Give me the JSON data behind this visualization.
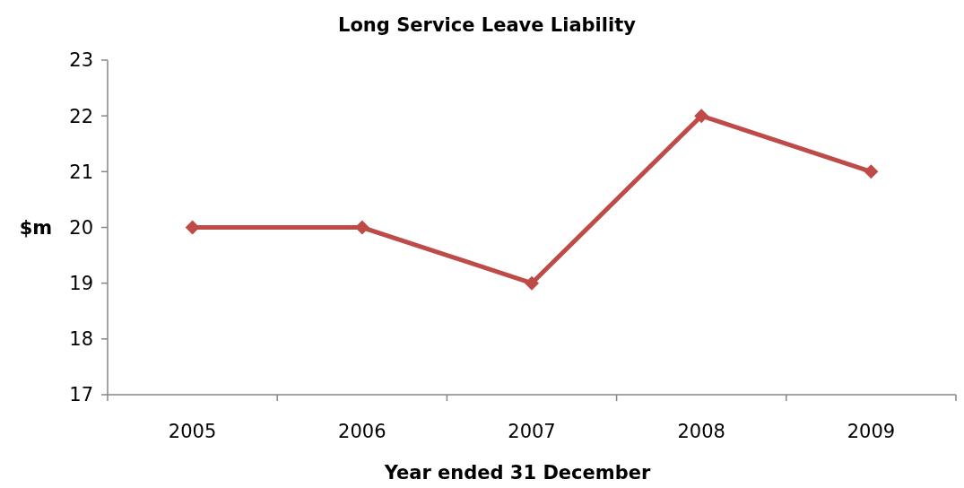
{
  "chart_data": {
    "type": "line",
    "title": "Long Service Leave Liability",
    "xlabel": "Year ended 31 December",
    "ylabel": "$m",
    "categories": [
      "2005",
      "2006",
      "2007",
      "2008",
      "2009"
    ],
    "series": [
      {
        "color": "#be4b48",
        "values": [
          20,
          20,
          19,
          22,
          21
        ]
      }
    ],
    "ylim": [
      17,
      23
    ],
    "yticks": [
      17,
      18,
      19,
      20,
      21,
      22,
      23
    ],
    "grid": false,
    "marker": "diamond",
    "line_style": "solid"
  }
}
